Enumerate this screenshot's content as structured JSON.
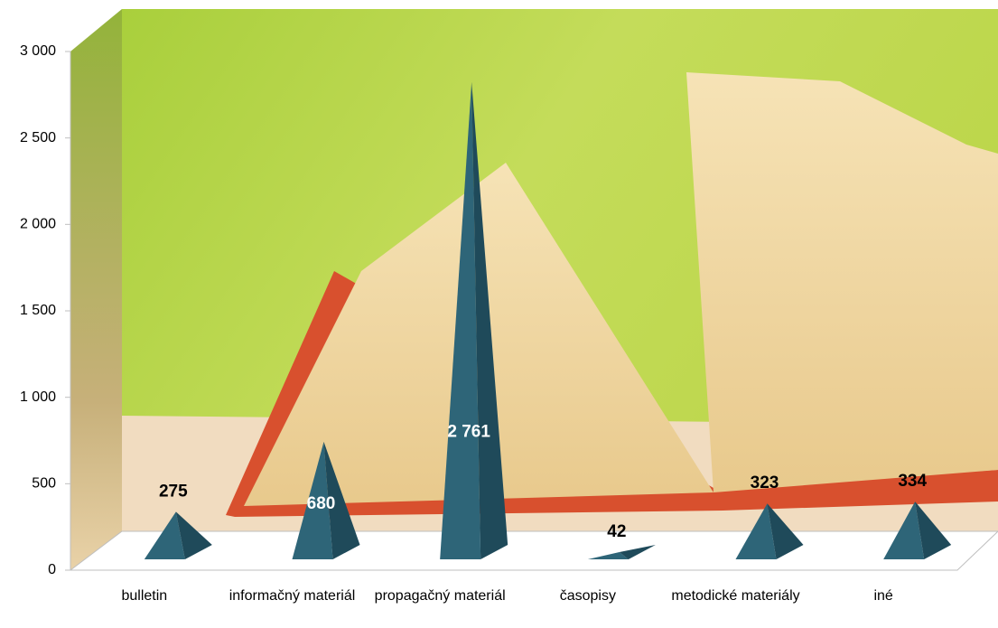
{
  "chart_data": {
    "type": "pyramid",
    "categories": [
      "bulletin",
      "informačný materiál",
      "propagačný materiál",
      "časopisy",
      "metodické materiály",
      "iné"
    ],
    "values": [
      275,
      680,
      2761,
      42,
      323,
      334
    ],
    "value_labels": [
      "275",
      "680",
      "2 761",
      "42",
      "323",
      "334"
    ],
    "color": "#2e6578",
    "ylim": [
      0,
      3000
    ],
    "yticks": [
      0,
      500,
      {
        "value": 1000,
        "label": "1 000"
      },
      {
        "value": 1500,
        "label": "1 500"
      },
      {
        "value": 2000,
        "label": "2 000"
      },
      {
        "value": 2500,
        "label": "2 500"
      },
      {
        "value": 3000,
        "label": "3 000"
      }
    ]
  }
}
